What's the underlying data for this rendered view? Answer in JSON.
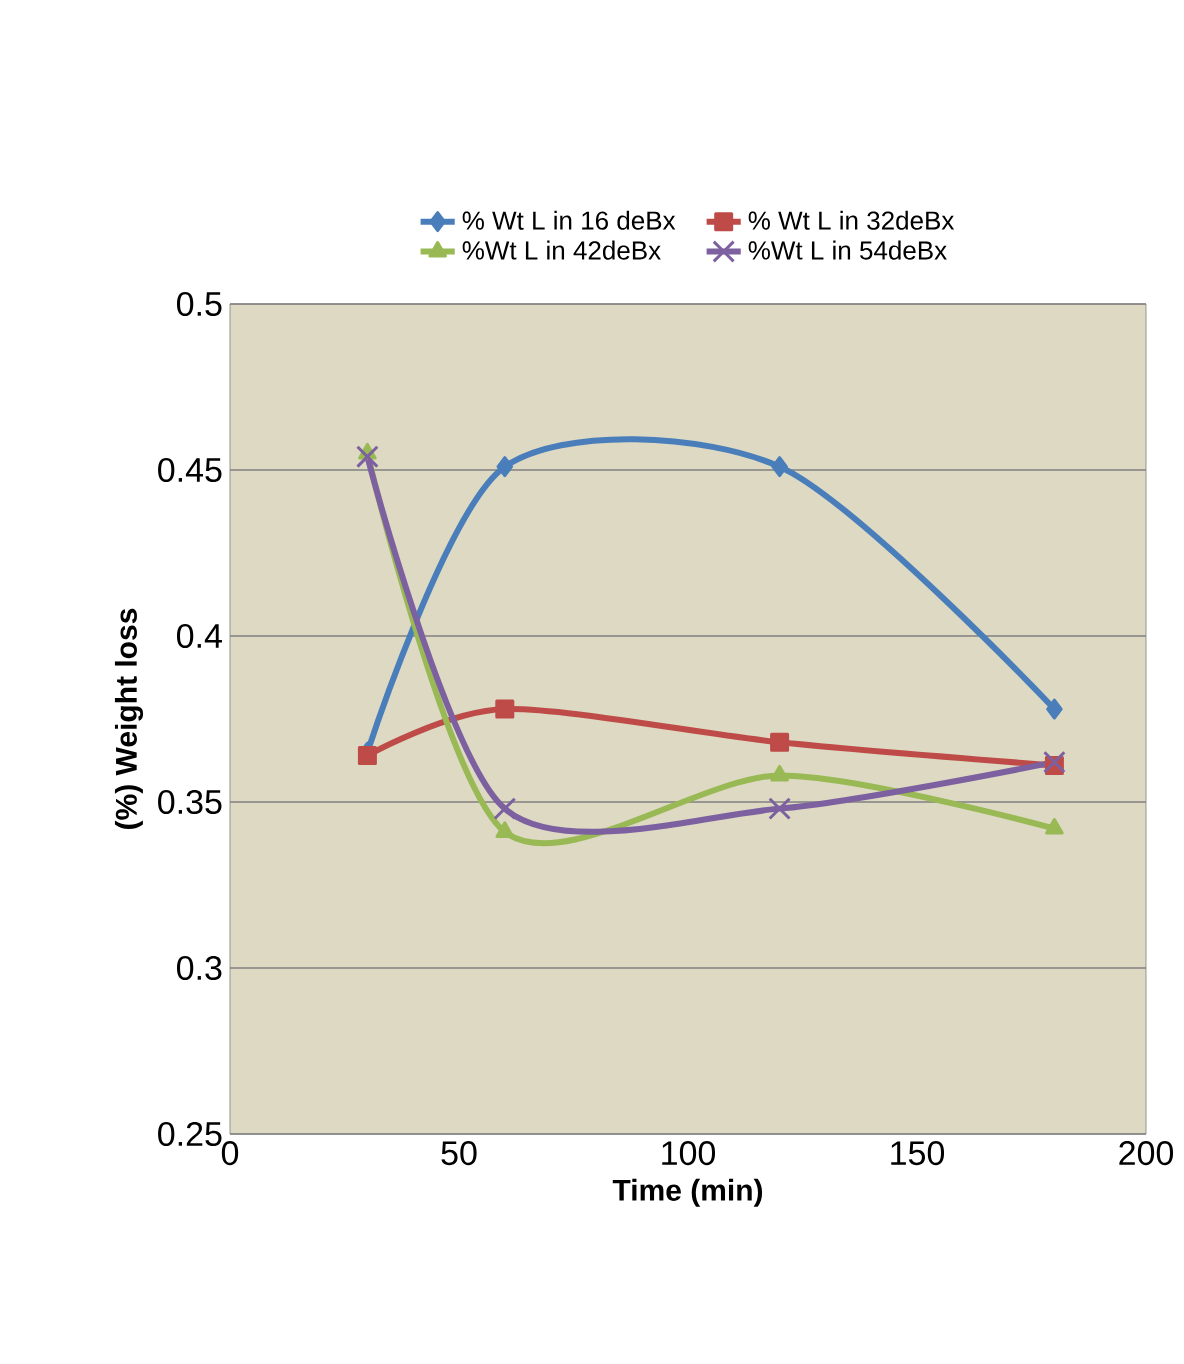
{
  "chart_data": {
    "type": "line",
    "xlabel": "Time (min)",
    "ylabel": "(%) Weight  loss",
    "x": [
      30,
      60,
      120,
      180
    ],
    "series": [
      {
        "name": "% Wt L in 16 deBx",
        "color": "#4a7ebb",
        "marker": "diamond",
        "values": [
          0.365,
          0.451,
          0.451,
          0.378
        ]
      },
      {
        "name": "% Wt L in 32deBx",
        "color": "#be4b48",
        "marker": "square",
        "values": [
          0.364,
          0.378,
          0.368,
          0.361
        ]
      },
      {
        "name": "%Wt L in 42deBx",
        "color": "#98b954",
        "marker": "triangle",
        "values": [
          0.455,
          0.341,
          0.358,
          0.342
        ]
      },
      {
        "name": "%Wt L in 54deBx",
        "color": "#7d60a0",
        "marker": "cross",
        "values": [
          0.454,
          0.348,
          0.348,
          0.362
        ]
      }
    ],
    "xlim": [
      0,
      200
    ],
    "xticks": [
      0,
      50,
      100,
      150,
      200
    ],
    "ylim": [
      0.25,
      0.5
    ],
    "yticks": [
      0.25,
      0.3,
      0.35,
      0.4,
      0.45,
      0.5
    ],
    "grid": "y",
    "legend": "top",
    "line_style": "solid"
  }
}
